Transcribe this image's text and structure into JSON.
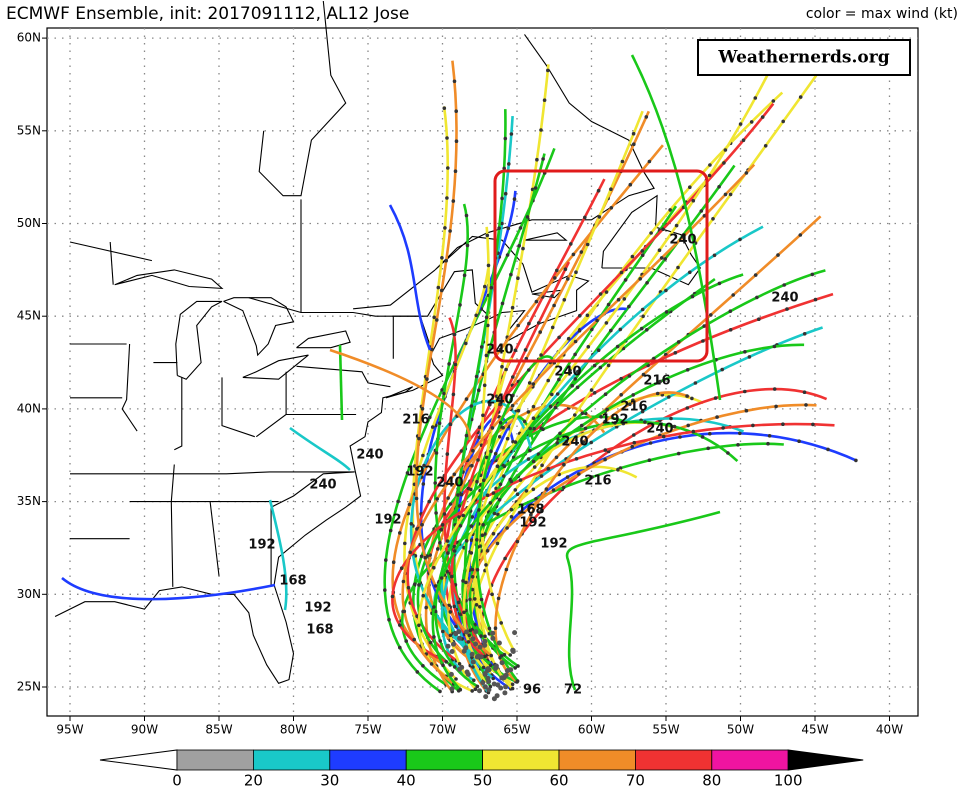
{
  "header": {
    "title": "ECMWF Ensemble, init: 2017091112, AL12 Jose",
    "legend_note": "color = max wind (kt)"
  },
  "watermark": "Weathernerds.org",
  "map": {
    "lat_labels": [
      "60N",
      "55N",
      "50N",
      "45N",
      "40N",
      "35N",
      "30N",
      "25N"
    ],
    "lon_labels": [
      "95W",
      "90W",
      "85W",
      "80W",
      "75W",
      "70W",
      "65W",
      "60W",
      "55W",
      "50W",
      "45W",
      "40W"
    ],
    "track_labels": [
      "240",
      "240",
      "240",
      "240",
      "216",
      "240",
      "216",
      "216",
      "192",
      "240",
      "240",
      "240",
      "192",
      "240",
      "240",
      "216",
      "168",
      "192",
      "192",
      "192",
      "192",
      "168",
      "192",
      "168",
      "72",
      "96"
    ]
  },
  "colorbar": {
    "ticks": [
      0,
      20,
      30,
      40,
      50,
      60,
      70,
      80,
      100
    ],
    "colors": [
      "#ffffff",
      "#a0a0a0",
      "#19c8c8",
      "#1e3cff",
      "#19c819",
      "#f0e632",
      "#f08c28",
      "#f03232",
      "#f014a0",
      "#000000"
    ]
  }
}
